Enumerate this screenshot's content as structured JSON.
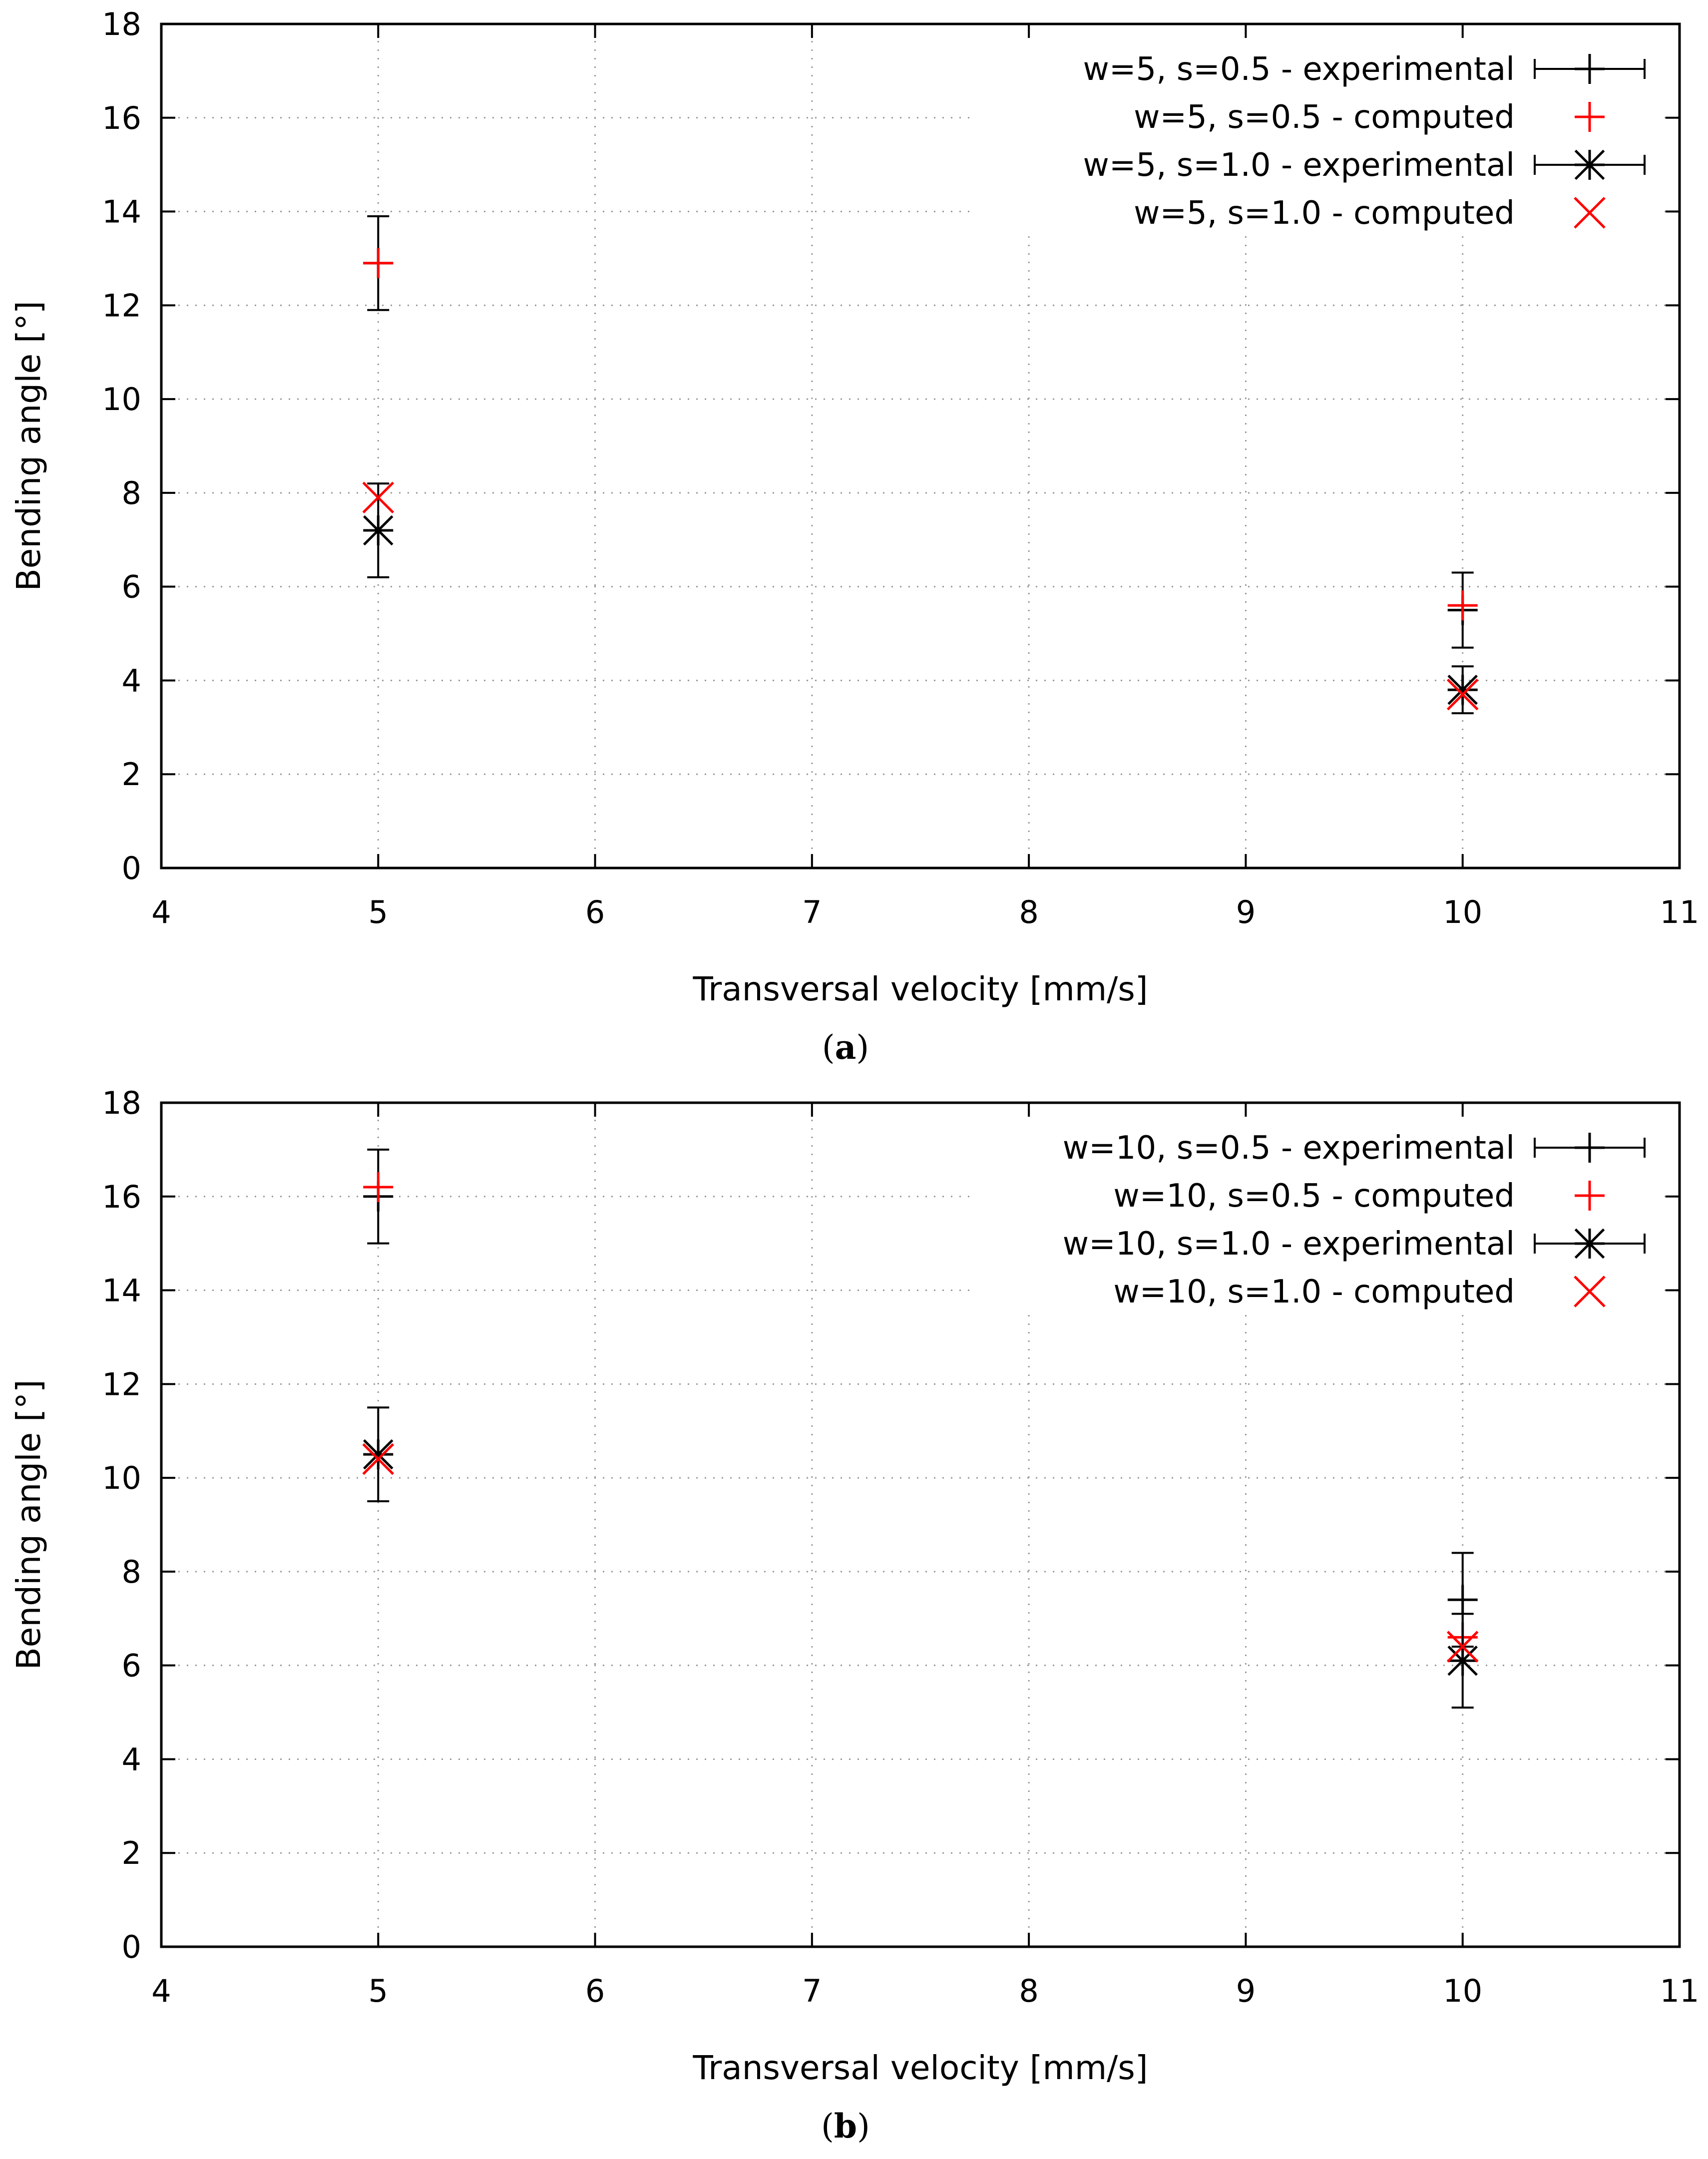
{
  "chart_data": [
    {
      "type": "scatter",
      "caption": "(a)",
      "caption_letter": "a",
      "xlabel": "Transversal velocity [mm/s]",
      "ylabel": "Bending angle [°]",
      "xlim": [
        4,
        11
      ],
      "ylim": [
        0,
        18
      ],
      "xticks": [
        4,
        5,
        6,
        7,
        8,
        9,
        10,
        11
      ],
      "yticks": [
        0,
        2,
        4,
        6,
        8,
        10,
        12,
        14,
        16,
        18
      ],
      "grid": true,
      "legend_position": "top-right",
      "series": [
        {
          "name": "w=5, s=0.5 - experimental",
          "marker": "plus",
          "color": "#000000",
          "errorbars": true,
          "points": [
            {
              "x": 5,
              "y": 12.9,
              "err": 1.0
            },
            {
              "x": 10,
              "y": 5.5,
              "err": 0.8
            }
          ]
        },
        {
          "name": "w=5, s=0.5 - computed",
          "marker": "plus",
          "color": "#ff0000",
          "errorbars": false,
          "points": [
            {
              "x": 5,
              "y": 12.9
            },
            {
              "x": 10,
              "y": 5.6
            }
          ]
        },
        {
          "name": "w=5, s=1.0 - experimental",
          "marker": "star",
          "color": "#000000",
          "errorbars": true,
          "points": [
            {
              "x": 5,
              "y": 7.2,
              "err": 1.0
            },
            {
              "x": 10,
              "y": 3.8,
              "err": 0.5
            }
          ]
        },
        {
          "name": "w=5, s=1.0 - computed",
          "marker": "cross",
          "color": "#ff0000",
          "errorbars": false,
          "points": [
            {
              "x": 5,
              "y": 7.9
            },
            {
              "x": 10,
              "y": 3.7
            }
          ]
        }
      ]
    },
    {
      "type": "scatter",
      "caption": "(b)",
      "caption_letter": "b",
      "xlabel": "Transversal velocity [mm/s]",
      "ylabel": "Bending angle [°]",
      "xlim": [
        4,
        11
      ],
      "ylim": [
        0,
        18
      ],
      "xticks": [
        4,
        5,
        6,
        7,
        8,
        9,
        10,
        11
      ],
      "yticks": [
        0,
        2,
        4,
        6,
        8,
        10,
        12,
        14,
        16,
        18
      ],
      "grid": true,
      "legend_position": "top-right",
      "series": [
        {
          "name": "w=10, s=0.5 - experimental",
          "marker": "plus",
          "color": "#000000",
          "errorbars": true,
          "points": [
            {
              "x": 5,
              "y": 16.0,
              "err": 1.0
            },
            {
              "x": 10,
              "y": 7.4,
              "err": 1.0
            }
          ]
        },
        {
          "name": "w=10, s=0.5 - computed",
          "marker": "plus",
          "color": "#ff0000",
          "errorbars": false,
          "points": [
            {
              "x": 5,
              "y": 16.2
            },
            {
              "x": 10,
              "y": 6.6
            }
          ]
        },
        {
          "name": "w=10, s=1.0 - experimental",
          "marker": "star",
          "color": "#000000",
          "errorbars": true,
          "points": [
            {
              "x": 5,
              "y": 10.5,
              "err": 1.0
            },
            {
              "x": 10,
              "y": 6.1,
              "err": 1.0
            }
          ]
        },
        {
          "name": "w=10, s=1.0 - computed",
          "marker": "cross",
          "color": "#ff0000",
          "errorbars": false,
          "points": [
            {
              "x": 5,
              "y": 10.4
            },
            {
              "x": 10,
              "y": 6.4
            }
          ]
        }
      ]
    }
  ]
}
